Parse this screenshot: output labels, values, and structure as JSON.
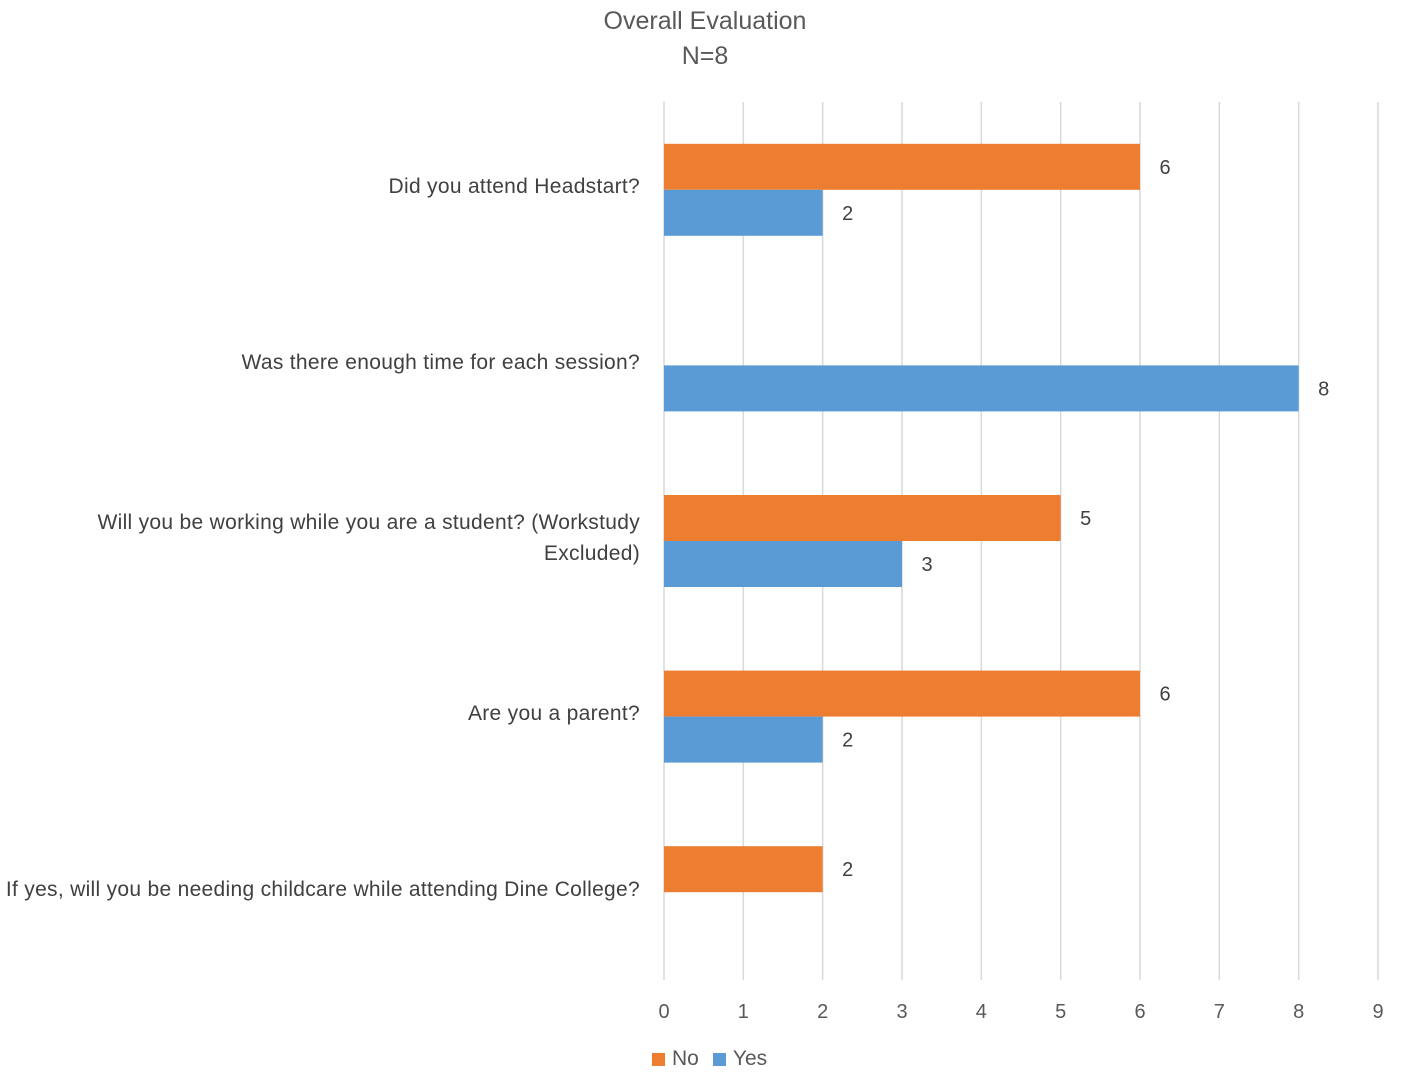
{
  "chart_data": {
    "type": "bar",
    "orientation": "horizontal",
    "title": "Overall Evaluation",
    "subtitle": "N=8",
    "categories": [
      "Did you attend Headstart?",
      "Was there enough time for each session?",
      "Will you be working while you are a student? (Workstudy Excluded)",
      "Are you a parent?",
      "If yes, will you be needing childcare while attending Dine College?"
    ],
    "series": [
      {
        "name": "No",
        "color": "#ED7D31",
        "values": [
          6,
          null,
          5,
          6,
          2
        ]
      },
      {
        "name": "Yes",
        "color": "#5B9BD5",
        "values": [
          2,
          8,
          3,
          2,
          null
        ]
      }
    ],
    "xlim": [
      0,
      9
    ],
    "xticks": [
      "0",
      "1",
      "2",
      "3",
      "4",
      "5",
      "6",
      "7",
      "8",
      "9"
    ],
    "grid": true,
    "data_labels": true,
    "legend": "bottom"
  }
}
